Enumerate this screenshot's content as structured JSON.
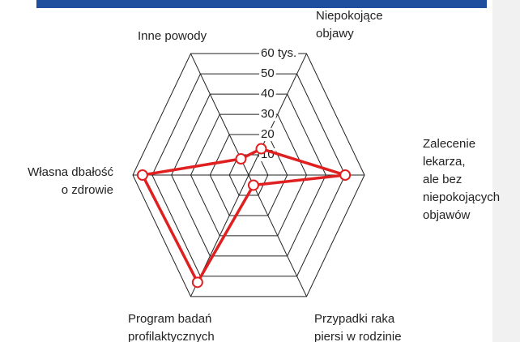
{
  "chart_data": {
    "type": "radar",
    "categories": [
      [
        "Niepokojące",
        "objawy"
      ],
      [
        "Zalecenie",
        "lekarza,",
        "ale bez",
        "niepokojących",
        "objawów"
      ],
      [
        "Przypadki raka",
        "piersi w rodzinie"
      ],
      [
        "Program badań",
        "profilaktycznych"
      ],
      [
        "Własna dbałość",
        "o zdrowie"
      ],
      [
        "Inne powody"
      ]
    ],
    "values": [
      13,
      50,
      5,
      53,
      55,
      8
    ],
    "color": "#e02020",
    "rlim": [
      0,
      60
    ],
    "rticks": [
      10,
      20,
      30,
      40,
      50,
      {
        "value": 60,
        "label": "60 tys."
      }
    ],
    "grid": true
  }
}
